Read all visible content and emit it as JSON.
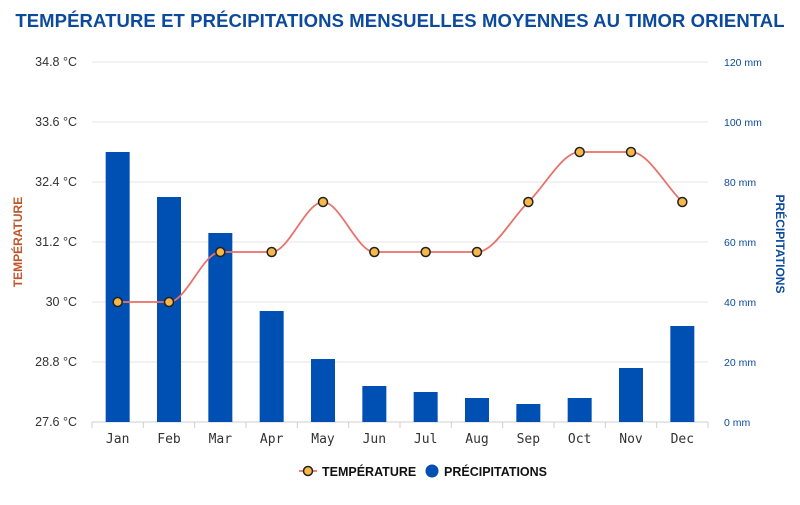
{
  "chart_data": {
    "type": "bar+line",
    "title": "TEMPÉRATURE ET PRÉCIPITATIONS MENSUELLES MOYENNES AU TIMOR ORIENTAL",
    "categories": [
      "Jan",
      "Feb",
      "Mar",
      "Apr",
      "May",
      "Jun",
      "Jul",
      "Aug",
      "Sep",
      "Oct",
      "Nov",
      "Dec"
    ],
    "series": [
      {
        "name": "TEMPÉRATURE",
        "type": "line",
        "axis": "left",
        "values": [
          30,
          30,
          31,
          31,
          32,
          31,
          31,
          31,
          32,
          33,
          33,
          32
        ]
      },
      {
        "name": "PRÉCIPITATIONS",
        "type": "bar",
        "axis": "right",
        "values": [
          90,
          75,
          63,
          37,
          21,
          12,
          10,
          8,
          6,
          8,
          18,
          32
        ]
      }
    ],
    "y_left": {
      "label": "TEMPÉRATURE",
      "min": 27.6,
      "max": 34.8,
      "ticks": [
        27.6,
        28.8,
        30,
        31.2,
        32.4,
        33.6,
        34.8
      ],
      "tick_labels": [
        "27.6 °C",
        "28.8 °C",
        "30 °C",
        "31.2 °C",
        "32.4 °C",
        "33.6 °C",
        "34.8 °C"
      ]
    },
    "y_right": {
      "label": "PRÉCIPITATIONS",
      "min": 0,
      "max": 120,
      "ticks": [
        0,
        20,
        40,
        60,
        80,
        100,
        120
      ],
      "tick_labels": [
        "0 mm",
        "20 mm",
        "40 mm",
        "60 mm",
        "80 mm",
        "100 mm",
        "120 mm"
      ]
    },
    "grid": true,
    "legend": "bottom-center",
    "colors": {
      "title": "#0b4a9c",
      "bars": "#0050b4",
      "line": "#e8716a",
      "marker_fill": "#f7b84a",
      "marker_stroke": "#222222",
      "left_label": "#c0552a",
      "right_axis": "#0b4a9c",
      "grid": "#e6e6e6"
    }
  }
}
